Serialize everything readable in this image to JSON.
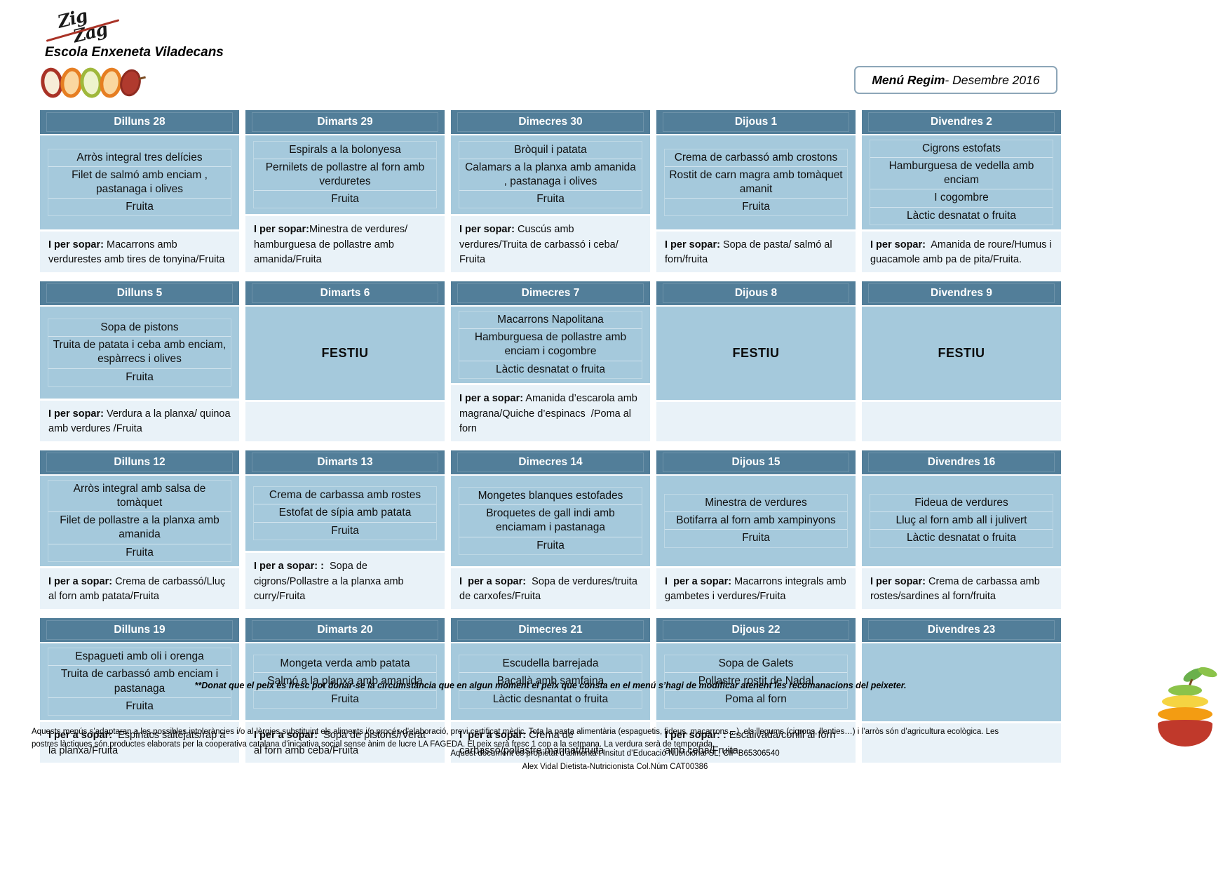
{
  "page": {
    "school": "Escola Enxeneta Viladecans",
    "logo": {
      "line1": "Zig",
      "line2": "Zag"
    },
    "menu_title": {
      "bold": "Menú Regim",
      "rest": " - Desembre 2016"
    }
  },
  "colors": {
    "header_bg": "#527e99",
    "lunch_bg": "#a5c9dc",
    "dinner_bg": "#e9f2f8",
    "logo_swoosh": "#a93226"
  },
  "weeks": [
    {
      "days": [
        {
          "header": "Dilluns 28",
          "lunch": [
            "Arròs integral tres delícies",
            "Filet de salmó amb enciam , pastanaga i olives",
            "Fruita"
          ],
          "dinner": {
            "bold": "I per sopar:",
            "text": " Macarrons amb verdurestes amb tires de tonyina/Fruita"
          }
        },
        {
          "header": "Dimarts 29",
          "lunch": [
            "Espirals a la bolonyesa",
            "Pernilets de pollastre al forn amb verduretes",
            "Fruita"
          ],
          "dinner": {
            "bold": "I per sopar:",
            "text": "Minestra de verdures/ hamburguesa de pollastre amb amanida/Fruita"
          }
        },
        {
          "header": "Dimecres 30",
          "lunch": [
            "Bròquil i patata",
            "Calamars a la planxa amb amanida , pastanaga i olives",
            "Fruita"
          ],
          "dinner": {
            "bold": "I per sopar:",
            "text": " Cuscús amb verdures/Truita de carbassó i ceba/ Fruita"
          }
        },
        {
          "header": "Dijous 1",
          "lunch": [
            "Crema de carbassó amb crostons",
            "Rostit de carn magra amb tomàquet amanit",
            "Fruita"
          ],
          "dinner": {
            "bold": "I per sopar:",
            "text": " Sopa de pasta/ salmó al forn/fruita"
          }
        },
        {
          "header": "Divendres 2",
          "lunch": [
            "Cigrons estofats",
            "Hamburguesa de vedella amb enciam",
            "I cogombre",
            "Làctic desnatat o fruita"
          ],
          "dinner": {
            "bold": "I per sopar:",
            "text": "  Amanida de roure/Humus i guacamole amb pa de pita/Fruita."
          }
        }
      ]
    },
    {
      "days": [
        {
          "header": "Dilluns 5",
          "lunch": [
            "Sopa de pistons",
            "Truita de patata i ceba amb enciam, espàrrecs i olives",
            "Fruita"
          ],
          "dinner": {
            "bold": "I per sopar:",
            "text": " Verdura a la planxa/ quinoa amb verdures /Fruita"
          }
        },
        {
          "header": "Dimarts 6",
          "festiu": "FESTIU"
        },
        {
          "header": "Dimecres 7",
          "lunch": [
            "Macarrons Napolitana",
            "Hamburguesa de pollastre amb enciam i cogombre",
            "Làctic desnatat o fruita"
          ],
          "dinner": {
            "bold": "I per a sopar:",
            "text": " Amanida d’escarola amb magrana/Quiche d’espinacs  /Poma al forn"
          }
        },
        {
          "header": "Dijous 8",
          "festiu": "FESTIU"
        },
        {
          "header": "Divendres 9",
          "festiu": "FESTIU"
        }
      ]
    },
    {
      "days": [
        {
          "header": "Dilluns 12",
          "lunch": [
            "Arròs integral amb salsa de tomàquet",
            "Filet de pollastre a la planxa amb amanida",
            "Fruita"
          ],
          "dinner": {
            "bold": "I per a sopar:",
            "text": " Crema de carbassó/Lluç al forn amb patata/Fruita"
          }
        },
        {
          "header": "Dimarts 13",
          "lunch": [
            "Crema de carbassa amb rostes",
            "Estofat de sípia amb patata",
            "Fruita"
          ],
          "dinner": {
            "bold": "I per a sopar: :",
            "text": "  Sopa de cigrons/Pollastre a la planxa amb curry/Fruita"
          }
        },
        {
          "header": "Dimecres 14",
          "lunch": [
            "Mongetes blanques estofades",
            "Broquetes de gall indi  amb enciamam i pastanaga",
            "Fruita"
          ],
          "dinner": {
            "bold": "I  per a sopar:",
            "text": "  Sopa de verdures/truita de carxofes/Fruita"
          }
        },
        {
          "header": "Dijous 15",
          "lunch": [
            "Minestra de verdures",
            "Botifarra al forn amb xampinyons",
            "Fruita"
          ],
          "dinner": {
            "bold": "I  per a sopar:",
            "text": " Macarrons integrals amb gambetes i verdures/Fruita"
          }
        },
        {
          "header": "Divendres 16",
          "lunch": [
            "Fideua de verdures",
            "Lluç al forn amb all i julivert",
            "Làctic desnatat o fruita"
          ],
          "dinner": {
            "bold": "I per sopar:",
            "text": " Crema de carbassa amb rostes/sardines al forn/fruita"
          }
        }
      ]
    },
    {
      "days": [
        {
          "header": "Dilluns 19",
          "lunch": [
            "Espagueti amb oli i orenga",
            "Truita de carbassó amb enciam i pastanaga",
            "Fruita"
          ],
          "dinner": {
            "bold": "I per a sopar:",
            "text": "  Espinacs saltejats/rap a la planxa/Fruita"
          }
        },
        {
          "header": "Dimarts 20",
          "lunch": [
            "Mongeta verda amb patata",
            "Salmó a la planxa amb amanida",
            "Fruita"
          ],
          "dinner": {
            "bold": "I per a sopar:",
            "text": "  Sopa de pistons//Verat al forn amb ceba/Fruita"
          }
        },
        {
          "header": "Dimecres 21",
          "lunch": [
            "Escudella barrejada",
            "Bacallà amb samfaina",
            "Làctic desnantat o fruita"
          ],
          "dinner": {
            "bold": "I  per a sopar:",
            "text": " Crema de carbassó/pollastre marinat/fruita"
          }
        },
        {
          "header": "Dijous 22",
          "lunch": [
            "Sopa de Galets",
            "Pollastre rostit de Nadal",
            "Poma al forn"
          ],
          "dinner": {
            "bold": "I per sopar: :",
            "text": " Escalivada/conill al forn amb ceba/Fruita"
          }
        },
        {
          "header": "Divendres 23",
          "lunch": []
        }
      ]
    }
  ],
  "footer": {
    "footnote": "**Donat que el peix és fresc pot donar-se la circumstància que en algun moment el peix que consta en el menú s’hagi de modificar atenent les recomanacions del peixeter.",
    "legal": "Aquests menús s’adaptaran a les possibles intoleràncies i/o al·lèrgies substituint els aliments i/o procés d’elaboració, previ certificat mèdic. Tota la pasta alimentària (espaguetis, fideus, macarrons…), els llegums (cigrons, llenties…) i l’arròs són d’agricultura ecològica. Les postres làctiques són productes elaborats per la cooperativa catalana d’iniciativa social sense ànim de lucre LA FAGEDA. El peix serà fresc 1 cop a la setmana. La verdura serà de temporada.",
    "doc_line": "Aquest document és propietat d’alimenta’t Insitut d’Educació Nutricional SL, CIF B65306540",
    "signature": "Alex Vidal Dietista-Nutricionista Col.Núm CAT00386"
  }
}
